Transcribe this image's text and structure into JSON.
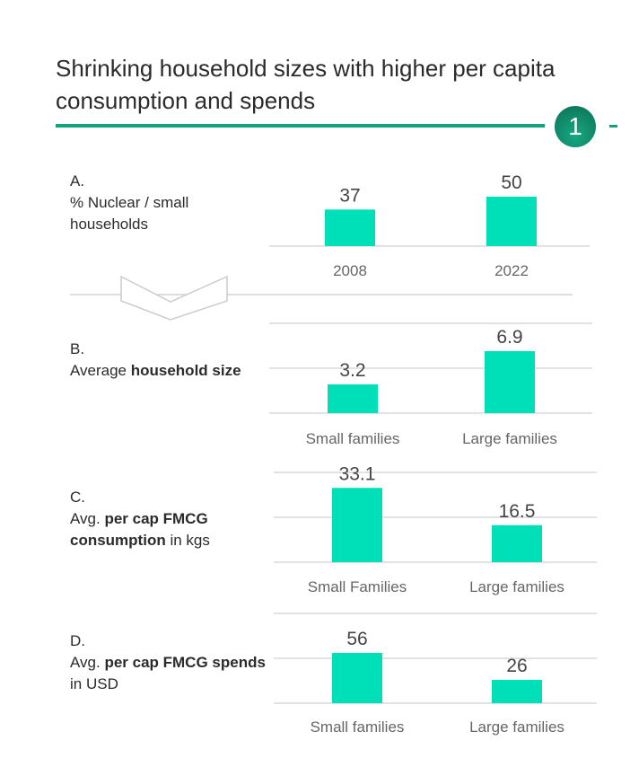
{
  "title": "Shrinking household sizes with higher per capita consumption and spends",
  "badge": "1",
  "colors": {
    "bar": "#00e0b8",
    "accent": "#12a37e",
    "badge": "#0b7a5e",
    "grid": "#e2e2e2"
  },
  "panels": [
    {
      "letter": "A.",
      "label_parts": [
        {
          "t": "% Nuclear / small households",
          "b": false
        }
      ]
    },
    {
      "letter": "B.",
      "label_parts": [
        {
          "t": "Average ",
          "b": false
        },
        {
          "t": "household size",
          "b": true
        }
      ]
    },
    {
      "letter": "C.",
      "label_parts": [
        {
          "t": "Avg. ",
          "b": false
        },
        {
          "t": "per cap FMCG consumption",
          "b": true
        },
        {
          "t": " in kgs",
          "b": false
        }
      ]
    },
    {
      "letter": "D.",
      "label_parts": [
        {
          "t": "Avg. ",
          "b": false
        },
        {
          "t": "per cap FMCG spends",
          "b": true
        },
        {
          "t": " in USD",
          "b": false
        }
      ]
    }
  ],
  "chart_data": [
    {
      "type": "bar",
      "categories": [
        "2008",
        "2022"
      ],
      "values": [
        37,
        50
      ],
      "value_labels": [
        "37",
        "50"
      ]
    },
    {
      "type": "bar",
      "categories": [
        "Small families",
        "Large families"
      ],
      "values": [
        3.2,
        6.9
      ],
      "value_labels": [
        "3.2",
        "6.9"
      ],
      "grid": true
    },
    {
      "type": "bar",
      "categories": [
        "Small Families",
        "Large families"
      ],
      "values": [
        33.1,
        16.5
      ],
      "value_labels": [
        "33.1",
        "16.5"
      ],
      "grid": true
    },
    {
      "type": "bar",
      "categories": [
        "Small families",
        "Large families"
      ],
      "values": [
        56,
        26
      ],
      "value_labels": [
        "56",
        "26"
      ],
      "grid": true
    }
  ]
}
